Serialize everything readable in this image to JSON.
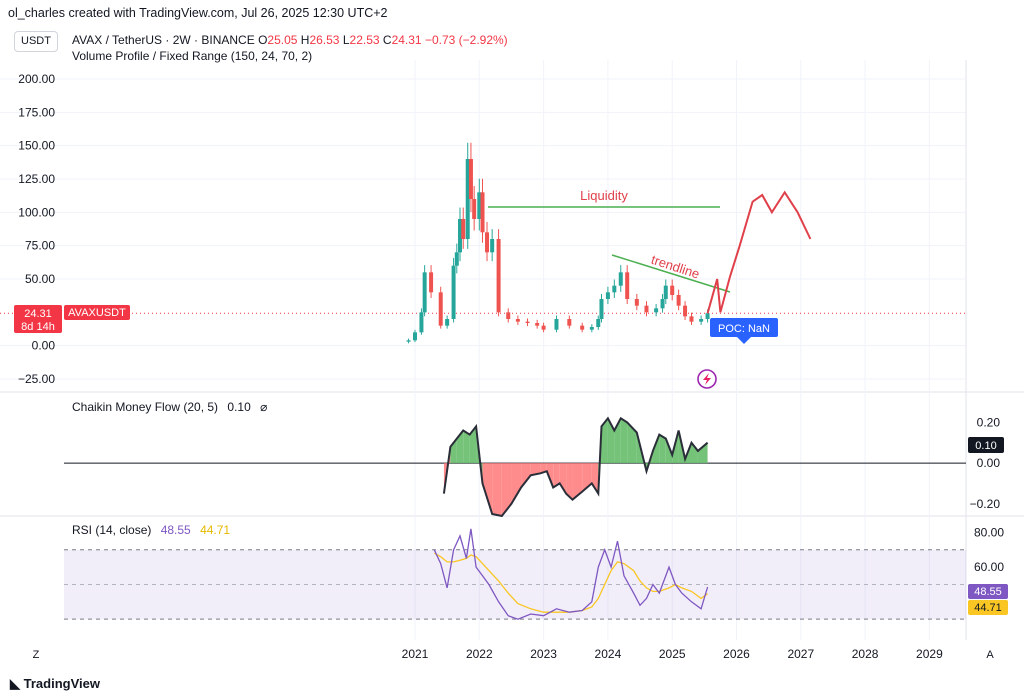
{
  "attribution": "ol_charles created with TradingView.com, Jul 26, 2025 12:30 UTC+2",
  "currency": "USDT",
  "legend": {
    "symbol": "AVAX / TetherUS · 2W · BINANCE",
    "o_label": "O",
    "o": "25.05",
    "h_label": "H",
    "h": "26.53",
    "l_label": "L",
    "l": "22.53",
    "c_label": "C",
    "c": "24.31",
    "change": "−0.73 (−2.92%)"
  },
  "volume_profile_label": "Volume Profile / Fixed Range (150, 24, 70, 2)",
  "price_tag": {
    "value": "24.31",
    "countdown": "8d 14h",
    "symbol": "AVAXUSDT"
  },
  "annotations": {
    "liquidity": "Liquidity",
    "trendline": "trendline",
    "poc": "POC: NaN"
  },
  "colors": {
    "up": "#26a69a",
    "down": "#ef5350",
    "drawing": "#e0404a",
    "green_line": "#4caf50",
    "rsi": "#7e57c2",
    "rsi_ma": "#f9c623"
  },
  "footer": "TradingView",
  "corner_left": "Z",
  "corner_right": "A",
  "chart_data": [
    {
      "type": "line",
      "title": "AVAX / TetherUS · 2W · BINANCE",
      "ylim": [
        -25,
        200
      ],
      "yticks": [
        "200.00",
        "175.00",
        "150.00",
        "125.00",
        "100.00",
        "75.00",
        "50.00",
        "0.00",
        "−25.00"
      ],
      "xticks": [
        "2021",
        "2022",
        "2023",
        "2024",
        "2025",
        "2026",
        "2027",
        "2028",
        "2029"
      ],
      "series": [
        {
          "name": "AVAXUSDT",
          "x": [
            2020.75,
            2020.9,
            2021.0,
            2021.1,
            2021.15,
            2021.25,
            2021.4,
            2021.5,
            2021.6,
            2021.65,
            2021.7,
            2021.75,
            2021.82,
            2021.87,
            2021.92,
            2022.0,
            2022.05,
            2022.12,
            2022.2,
            2022.3,
            2022.45,
            2022.6,
            2022.75,
            2022.9,
            2023.0,
            2023.2,
            2023.4,
            2023.6,
            2023.75,
            2023.85,
            2023.9,
            2024.0,
            2024.1,
            2024.2,
            2024.3,
            2024.45,
            2024.6,
            2024.75,
            2024.85,
            2024.9,
            2025.0,
            2025.1,
            2025.2,
            2025.3,
            2025.45,
            2025.55
          ],
          "values": [
            3,
            4,
            10,
            25,
            55,
            40,
            15,
            20,
            60,
            70,
            95,
            80,
            140,
            110,
            95,
            115,
            85,
            70,
            80,
            25,
            20,
            18,
            17,
            15,
            12,
            20,
            15,
            12,
            14,
            20,
            35,
            40,
            45,
            55,
            35,
            30,
            25,
            28,
            35,
            45,
            38,
            30,
            22,
            18,
            20,
            24.31
          ]
        }
      ],
      "drawings": {
        "liquidity_level": 104,
        "forecast_path_x": [
          2025.55,
          2025.7,
          2025.75,
          2025.9,
          2026.05,
          2026.25,
          2026.4,
          2026.55,
          2026.75,
          2026.95,
          2027.15
        ],
        "forecast_path_y": [
          24.31,
          50,
          25,
          52,
          75,
          108,
          113,
          100,
          115,
          100,
          80
        ]
      }
    },
    {
      "type": "area",
      "title": "Chaikin Money Flow (20, 5)",
      "current": "0.10",
      "yticks": [
        "0.20",
        "0.00",
        "−0.20"
      ],
      "ylim": [
        -0.26,
        0.3
      ],
      "x": [
        2021.45,
        2021.55,
        2021.65,
        2021.75,
        2021.85,
        2021.95,
        2022.05,
        2022.2,
        2022.35,
        2022.5,
        2022.65,
        2022.8,
        2022.95,
        2023.05,
        2023.15,
        2023.25,
        2023.35,
        2023.45,
        2023.6,
        2023.75,
        2023.85,
        2023.9,
        2024.0,
        2024.1,
        2024.2,
        2024.3,
        2024.45,
        2024.6,
        2024.7,
        2024.8,
        2024.9,
        2025.0,
        2025.1,
        2025.2,
        2025.3,
        2025.4,
        2025.55
      ],
      "values": [
        -0.15,
        0.08,
        0.12,
        0.16,
        0.14,
        0.18,
        -0.1,
        -0.25,
        -0.26,
        -0.2,
        -0.12,
        -0.06,
        -0.05,
        -0.04,
        -0.12,
        -0.1,
        -0.15,
        -0.18,
        -0.14,
        -0.1,
        -0.15,
        0.18,
        0.22,
        0.16,
        0.22,
        0.2,
        0.15,
        -0.04,
        0.06,
        0.14,
        0.12,
        0.04,
        0.16,
        0.02,
        0.1,
        0.06,
        0.1
      ]
    },
    {
      "type": "line",
      "title": "RSI (14, close)",
      "rsi_label": "RSI (14, close)",
      "rsi_value": "48.55",
      "ma_value": "44.71",
      "yticks": [
        "80.00",
        "60.00"
      ],
      "ylim": [
        18,
        86
      ],
      "band": [
        30,
        70
      ],
      "x": [
        2021.3,
        2021.4,
        2021.5,
        2021.6,
        2021.7,
        2021.8,
        2021.87,
        2021.95,
        2022.05,
        2022.15,
        2022.3,
        2022.45,
        2022.6,
        2022.8,
        2023.0,
        2023.2,
        2023.4,
        2023.6,
        2023.75,
        2023.85,
        2023.95,
        2024.05,
        2024.15,
        2024.25,
        2024.4,
        2024.5,
        2024.6,
        2024.7,
        2024.8,
        2024.95,
        2025.05,
        2025.15,
        2025.3,
        2025.45,
        2025.55
      ],
      "series": [
        {
          "name": "RSI",
          "values": [
            70,
            62,
            48,
            70,
            78,
            65,
            82,
            60,
            55,
            50,
            40,
            32,
            30,
            33,
            32,
            36,
            34,
            35,
            40,
            60,
            70,
            60,
            75,
            55,
            45,
            38,
            42,
            50,
            45,
            60,
            50,
            45,
            40,
            36,
            48.55
          ]
        },
        {
          "name": "RSI-based MA",
          "values": [
            68,
            66,
            63,
            63,
            64,
            65,
            67,
            66,
            62,
            58,
            52,
            45,
            39,
            36,
            34,
            34,
            34,
            35,
            37,
            42,
            50,
            58,
            63,
            62,
            58,
            52,
            48,
            46,
            46,
            48,
            50,
            48,
            46,
            42,
            44.71
          ]
        }
      ]
    }
  ]
}
